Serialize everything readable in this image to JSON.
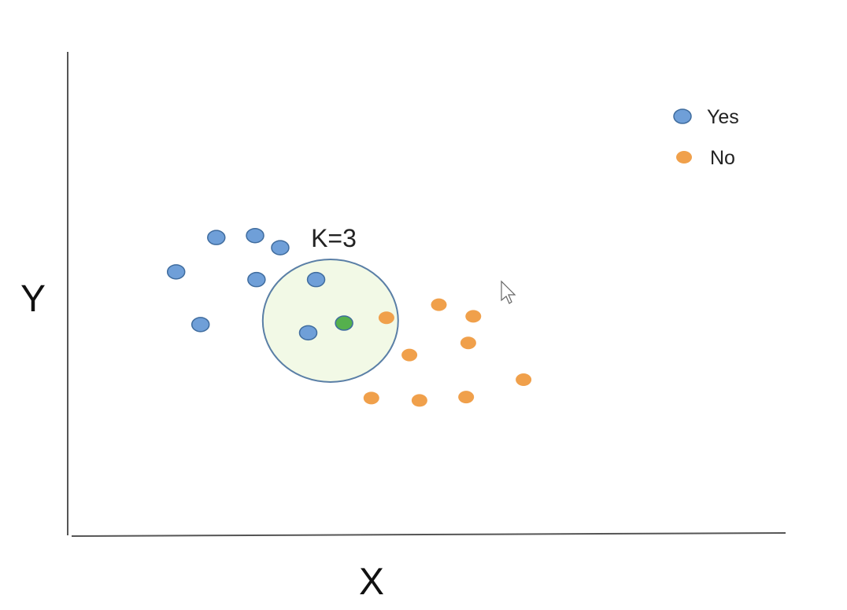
{
  "chart_data": {
    "type": "scatter",
    "xlabel": "X",
    "ylabel": "Y",
    "xlim": [
      0,
      100
    ],
    "ylim": [
      0,
      100
    ],
    "grid": false,
    "legend_position": "top-right",
    "annotation": "K=3",
    "series": [
      {
        "name": "Yes",
        "color": "#6f9fd8",
        "stroke": "#3f6c9e",
        "points": [
          {
            "x": 20.7,
            "y": 61.6
          },
          {
            "x": 26.1,
            "y": 62.0
          },
          {
            "x": 26.3,
            "y": 52.9
          },
          {
            "x": 15.1,
            "y": 54.5
          },
          {
            "x": 18.5,
            "y": 43.6
          },
          {
            "x": 29.6,
            "y": 59.5
          },
          {
            "x": 34.6,
            "y": 52.9
          },
          {
            "x": 33.5,
            "y": 41.9
          }
        ]
      },
      {
        "name": "No",
        "color": "#f0a04b",
        "stroke": "#f0a04b",
        "points": [
          {
            "x": 44.4,
            "y": 45.0
          },
          {
            "x": 51.7,
            "y": 47.7
          },
          {
            "x": 56.5,
            "y": 45.3
          },
          {
            "x": 55.8,
            "y": 39.8
          },
          {
            "x": 47.6,
            "y": 37.3
          },
          {
            "x": 63.5,
            "y": 32.2
          },
          {
            "x": 42.3,
            "y": 28.4
          },
          {
            "x": 49.0,
            "y": 27.9
          },
          {
            "x": 55.5,
            "y": 28.6
          }
        ]
      }
    ],
    "query_point": {
      "x": 38.5,
      "y": 43.9,
      "color": "#55b04d"
    },
    "neighborhood_circle": {
      "cx": 36.6,
      "cy": 44.4
    }
  },
  "legend": {
    "yes_label": "Yes",
    "no_label": "No"
  }
}
